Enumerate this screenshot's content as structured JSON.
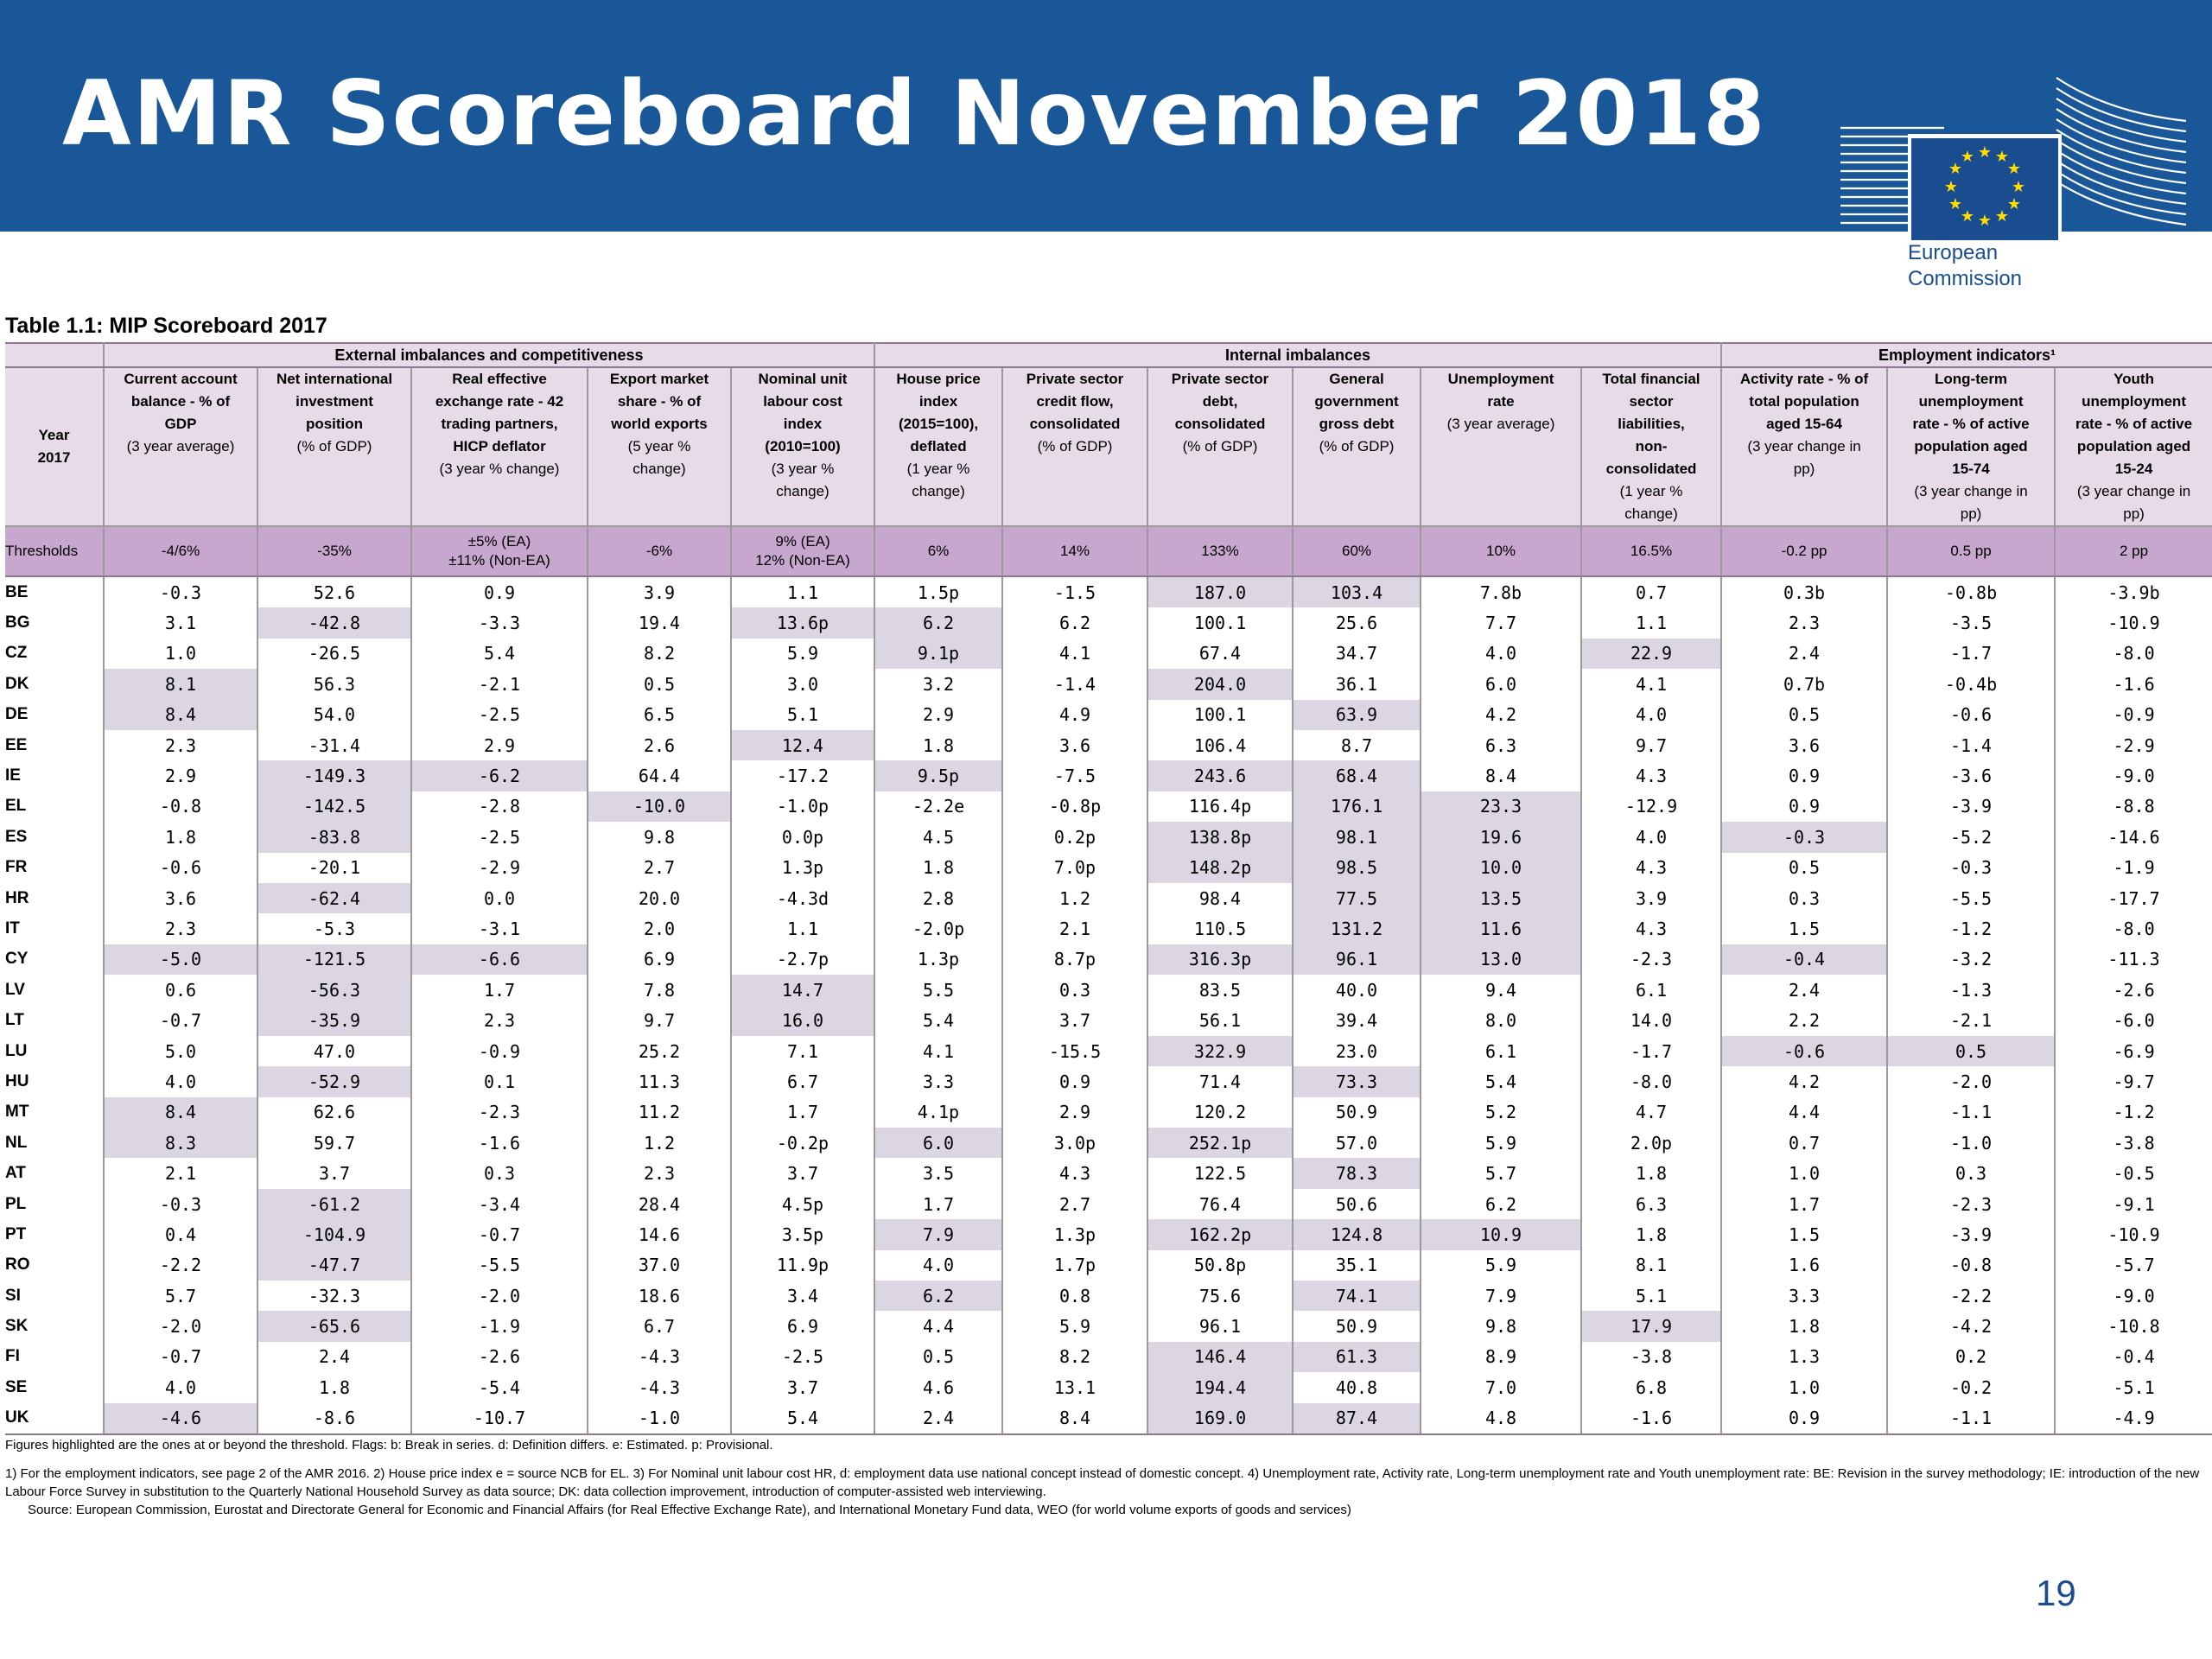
{
  "header": {
    "title": "AMR Scoreboard November 2018",
    "logo_text_line1": "European",
    "logo_text_line2": "Commission",
    "banner_color": "#1a5799"
  },
  "table": {
    "caption": "Table 1.1: MIP Scoreboard 2017",
    "groups": {
      "external": "External imbalances and competitiveness",
      "internal": "Internal imbalances",
      "employment": "Employment indicators¹"
    },
    "year_header": [
      "Year",
      "2017"
    ],
    "columns": [
      {
        "bold": [
          "Current account",
          "balance - % of",
          "GDP"
        ],
        "normal": [
          "(3 year average)"
        ]
      },
      {
        "bold": [
          "Net international",
          "investment",
          "position"
        ],
        "normal": [
          "(% of GDP)"
        ]
      },
      {
        "bold": [
          "Real effective",
          "exchange rate - 42",
          "trading partners,",
          "HICP deflator"
        ],
        "normal": [
          "(3 year % change)"
        ]
      },
      {
        "bold": [
          "Export market",
          "share - % of",
          "world exports"
        ],
        "normal": [
          "(5 year %",
          "change)"
        ]
      },
      {
        "bold": [
          "Nominal unit",
          "labour cost",
          "index",
          "(2010=100)"
        ],
        "normal": [
          "(3 year %",
          "change)"
        ]
      },
      {
        "bold": [
          "House price",
          "index",
          "(2015=100),",
          "deflated"
        ],
        "normal": [
          "(1 year %",
          "change)"
        ]
      },
      {
        "bold": [
          "Private sector",
          "credit flow,",
          "consolidated"
        ],
        "normal": [
          "(% of GDP)"
        ]
      },
      {
        "bold": [
          "Private sector",
          "debt,",
          "consolidated"
        ],
        "normal": [
          "(% of GDP)"
        ]
      },
      {
        "bold": [
          "General",
          "government",
          "gross debt"
        ],
        "normal": [
          "(% of GDP)"
        ]
      },
      {
        "bold": [
          "Unemployment",
          "rate"
        ],
        "normal": [
          "(3 year average)"
        ]
      },
      {
        "bold": [
          "Total financial",
          "sector",
          "liabilities,",
          "non-",
          "consolidated"
        ],
        "normal": [
          "(1 year %",
          "change)"
        ]
      },
      {
        "bold": [
          "Activity rate - % of",
          "total population",
          "aged 15-64"
        ],
        "normal": [
          "(3 year change in",
          "pp)"
        ]
      },
      {
        "bold": [
          "Long-term",
          "unemployment",
          "rate - % of active",
          "population aged",
          "15-74"
        ],
        "normal": [
          "(3 year change in",
          "pp)"
        ]
      },
      {
        "bold": [
          "Youth",
          "unemployment",
          "rate - % of active",
          "population aged",
          "15-24"
        ],
        "normal": [
          "(3 year change in",
          "pp)"
        ]
      }
    ],
    "thresholds_label": "Thresholds",
    "thresholds": [
      [
        "-4/6%"
      ],
      [
        "-35%"
      ],
      [
        "±5% (EA)",
        "±11% (Non-EA)"
      ],
      [
        "-6%"
      ],
      [
        "9% (EA)",
        "12% (Non-EA)"
      ],
      [
        "6%"
      ],
      [
        "14%"
      ],
      [
        "133%"
      ],
      [
        "60%"
      ],
      [
        "10%"
      ],
      [
        "16.5%"
      ],
      [
        "-0.2 pp"
      ],
      [
        "0.5 pp"
      ],
      [
        "2 pp"
      ]
    ],
    "rows": [
      {
        "country": "BE",
        "values": [
          "-0.3",
          "52.6",
          "0.9",
          "3.9",
          "1.1",
          "1.5p",
          "-1.5",
          "187.0",
          "103.4",
          "7.8b",
          "0.7",
          "0.3b",
          "-0.8b",
          "-3.9b"
        ],
        "highlight": [
          7,
          8
        ]
      },
      {
        "country": "BG",
        "values": [
          "3.1",
          "-42.8",
          "-3.3",
          "19.4",
          "13.6p",
          "6.2",
          "6.2",
          "100.1",
          "25.6",
          "7.7",
          "1.1",
          "2.3",
          "-3.5",
          "-10.9"
        ],
        "highlight": [
          1,
          4,
          5
        ]
      },
      {
        "country": "CZ",
        "values": [
          "1.0",
          "-26.5",
          "5.4",
          "8.2",
          "5.9",
          "9.1p",
          "4.1",
          "67.4",
          "34.7",
          "4.0",
          "22.9",
          "2.4",
          "-1.7",
          "-8.0"
        ],
        "highlight": [
          5,
          10
        ]
      },
      {
        "country": "DK",
        "values": [
          "8.1",
          "56.3",
          "-2.1",
          "0.5",
          "3.0",
          "3.2",
          "-1.4",
          "204.0",
          "36.1",
          "6.0",
          "4.1",
          "0.7b",
          "-0.4b",
          "-1.6"
        ],
        "highlight": [
          0,
          7
        ]
      },
      {
        "country": "DE",
        "values": [
          "8.4",
          "54.0",
          "-2.5",
          "6.5",
          "5.1",
          "2.9",
          "4.9",
          "100.1",
          "63.9",
          "4.2",
          "4.0",
          "0.5",
          "-0.6",
          "-0.9"
        ],
        "highlight": [
          0,
          8
        ]
      },
      {
        "country": "EE",
        "values": [
          "2.3",
          "-31.4",
          "2.9",
          "2.6",
          "12.4",
          "1.8",
          "3.6",
          "106.4",
          "8.7",
          "6.3",
          "9.7",
          "3.6",
          "-1.4",
          "-2.9"
        ],
        "highlight": [
          4
        ]
      },
      {
        "country": "IE",
        "values": [
          "2.9",
          "-149.3",
          "-6.2",
          "64.4",
          "-17.2",
          "9.5p",
          "-7.5",
          "243.6",
          "68.4",
          "8.4",
          "4.3",
          "0.9",
          "-3.6",
          "-9.0"
        ],
        "highlight": [
          1,
          2,
          5,
          7,
          8
        ]
      },
      {
        "country": "EL",
        "values": [
          "-0.8",
          "-142.5",
          "-2.8",
          "-10.0",
          "-1.0p",
          "-2.2e",
          "-0.8p",
          "116.4p",
          "176.1",
          "23.3",
          "-12.9",
          "0.9",
          "-3.9",
          "-8.8"
        ],
        "highlight": [
          1,
          3,
          8,
          9
        ]
      },
      {
        "country": "ES",
        "values": [
          "1.8",
          "-83.8",
          "-2.5",
          "9.8",
          "0.0p",
          "4.5",
          "0.2p",
          "138.8p",
          "98.1",
          "19.6",
          "4.0",
          "-0.3",
          "-5.2",
          "-14.6"
        ],
        "highlight": [
          1,
          7,
          8,
          9,
          11
        ]
      },
      {
        "country": "FR",
        "values": [
          "-0.6",
          "-20.1",
          "-2.9",
          "2.7",
          "1.3p",
          "1.8",
          "7.0p",
          "148.2p",
          "98.5",
          "10.0",
          "4.3",
          "0.5",
          "-0.3",
          "-1.9"
        ],
        "highlight": [
          7,
          8,
          9
        ]
      },
      {
        "country": "HR",
        "values": [
          "3.6",
          "-62.4",
          "0.0",
          "20.0",
          "-4.3d",
          "2.8",
          "1.2",
          "98.4",
          "77.5",
          "13.5",
          "3.9",
          "0.3",
          "-5.5",
          "-17.7"
        ],
        "highlight": [
          1,
          8,
          9
        ]
      },
      {
        "country": "IT",
        "values": [
          "2.3",
          "-5.3",
          "-3.1",
          "2.0",
          "1.1",
          "-2.0p",
          "2.1",
          "110.5",
          "131.2",
          "11.6",
          "4.3",
          "1.5",
          "-1.2",
          "-8.0"
        ],
        "highlight": [
          8,
          9
        ]
      },
      {
        "country": "CY",
        "values": [
          "-5.0",
          "-121.5",
          "-6.6",
          "6.9",
          "-2.7p",
          "1.3p",
          "8.7p",
          "316.3p",
          "96.1",
          "13.0",
          "-2.3",
          "-0.4",
          "-3.2",
          "-11.3"
        ],
        "highlight": [
          0,
          1,
          2,
          7,
          8,
          9,
          11
        ]
      },
      {
        "country": "LV",
        "values": [
          "0.6",
          "-56.3",
          "1.7",
          "7.8",
          "14.7",
          "5.5",
          "0.3",
          "83.5",
          "40.0",
          "9.4",
          "6.1",
          "2.4",
          "-1.3",
          "-2.6"
        ],
        "highlight": [
          1,
          4
        ]
      },
      {
        "country": "LT",
        "values": [
          "-0.7",
          "-35.9",
          "2.3",
          "9.7",
          "16.0",
          "5.4",
          "3.7",
          "56.1",
          "39.4",
          "8.0",
          "14.0",
          "2.2",
          "-2.1",
          "-6.0"
        ],
        "highlight": [
          1,
          4
        ]
      },
      {
        "country": "LU",
        "values": [
          "5.0",
          "47.0",
          "-0.9",
          "25.2",
          "7.1",
          "4.1",
          "-15.5",
          "322.9",
          "23.0",
          "6.1",
          "-1.7",
          "-0.6",
          "0.5",
          "-6.9"
        ],
        "highlight": [
          7,
          11,
          12
        ]
      },
      {
        "country": "HU",
        "values": [
          "4.0",
          "-52.9",
          "0.1",
          "11.3",
          "6.7",
          "3.3",
          "0.9",
          "71.4",
          "73.3",
          "5.4",
          "-8.0",
          "4.2",
          "-2.0",
          "-9.7"
        ],
        "highlight": [
          1,
          8
        ]
      },
      {
        "country": "MT",
        "values": [
          "8.4",
          "62.6",
          "-2.3",
          "11.2",
          "1.7",
          "4.1p",
          "2.9",
          "120.2",
          "50.9",
          "5.2",
          "4.7",
          "4.4",
          "-1.1",
          "-1.2"
        ],
        "highlight": [
          0
        ]
      },
      {
        "country": "NL",
        "values": [
          "8.3",
          "59.7",
          "-1.6",
          "1.2",
          "-0.2p",
          "6.0",
          "3.0p",
          "252.1p",
          "57.0",
          "5.9",
          "2.0p",
          "0.7",
          "-1.0",
          "-3.8"
        ],
        "highlight": [
          0,
          5,
          7
        ]
      },
      {
        "country": "AT",
        "values": [
          "2.1",
          "3.7",
          "0.3",
          "2.3",
          "3.7",
          "3.5",
          "4.3",
          "122.5",
          "78.3",
          "5.7",
          "1.8",
          "1.0",
          "0.3",
          "-0.5"
        ],
        "highlight": [
          8
        ]
      },
      {
        "country": "PL",
        "values": [
          "-0.3",
          "-61.2",
          "-3.4",
          "28.4",
          "4.5p",
          "1.7",
          "2.7",
          "76.4",
          "50.6",
          "6.2",
          "6.3",
          "1.7",
          "-2.3",
          "-9.1"
        ],
        "highlight": [
          1
        ]
      },
      {
        "country": "PT",
        "values": [
          "0.4",
          "-104.9",
          "-0.7",
          "14.6",
          "3.5p",
          "7.9",
          "1.3p",
          "162.2p",
          "124.8",
          "10.9",
          "1.8",
          "1.5",
          "-3.9",
          "-10.9"
        ],
        "highlight": [
          1,
          5,
          7,
          8,
          9
        ]
      },
      {
        "country": "RO",
        "values": [
          "-2.2",
          "-47.7",
          "-5.5",
          "37.0",
          "11.9p",
          "4.0",
          "1.7p",
          "50.8p",
          "35.1",
          "5.9",
          "8.1",
          "1.6",
          "-0.8",
          "-5.7"
        ],
        "highlight": [
          1
        ]
      },
      {
        "country": "SI",
        "values": [
          "5.7",
          "-32.3",
          "-2.0",
          "18.6",
          "3.4",
          "6.2",
          "0.8",
          "75.6",
          "74.1",
          "7.9",
          "5.1",
          "3.3",
          "-2.2",
          "-9.0"
        ],
        "highlight": [
          5,
          8
        ]
      },
      {
        "country": "SK",
        "values": [
          "-2.0",
          "-65.6",
          "-1.9",
          "6.7",
          "6.9",
          "4.4",
          "5.9",
          "96.1",
          "50.9",
          "9.8",
          "17.9",
          "1.8",
          "-4.2",
          "-10.8"
        ],
        "highlight": [
          1,
          10
        ]
      },
      {
        "country": "FI",
        "values": [
          "-0.7",
          "2.4",
          "-2.6",
          "-4.3",
          "-2.5",
          "0.5",
          "8.2",
          "146.4",
          "61.3",
          "8.9",
          "-3.8",
          "1.3",
          "0.2",
          "-0.4"
        ],
        "highlight": [
          7,
          8
        ]
      },
      {
        "country": "SE",
        "values": [
          "4.0",
          "1.8",
          "-5.4",
          "-4.3",
          "3.7",
          "4.6",
          "13.1",
          "194.4",
          "40.8",
          "7.0",
          "6.8",
          "1.0",
          "-0.2",
          "-5.1"
        ],
        "highlight": [
          7
        ]
      },
      {
        "country": "UK",
        "values": [
          "-4.6",
          "-8.6",
          "-10.7",
          "-1.0",
          "5.4",
          "2.4",
          "8.4",
          "169.0",
          "87.4",
          "4.8",
          "-1.6",
          "0.9",
          "-1.1",
          "-4.9"
        ],
        "highlight": [
          0,
          7,
          8
        ]
      }
    ],
    "highlight_color": "#dcd6e3"
  },
  "notes": {
    "flags": "Figures highlighted are the ones at or beyond the threshold. Flags: b: Break in series. d: Definition differs. e: Estimated. p: Provisional.",
    "footnote": "1) For the employment indicators, see page 2 of the AMR 2016. 2) House price index e = source NCB for EL. 3) For Nominal unit labour cost HR, d: employment data use national concept instead of domestic concept. 4) Unemployment rate, Activity rate, Long-term unemployment rate and Youth unemployment rate: BE: Revision in the survey methodology; IE: introduction of the new Labour Force Survey in substitution to the Quarterly National Household Survey as data source; DK: data collection improvement, introduction of computer-assisted web interviewing.",
    "source": "Source: European Commission, Eurostat and Directorate General for Economic and Financial Affairs (for Real Effective Exchange Rate), and International Monetary Fund data, WEO (for world volume exports of goods and services)"
  },
  "page_number": "19"
}
